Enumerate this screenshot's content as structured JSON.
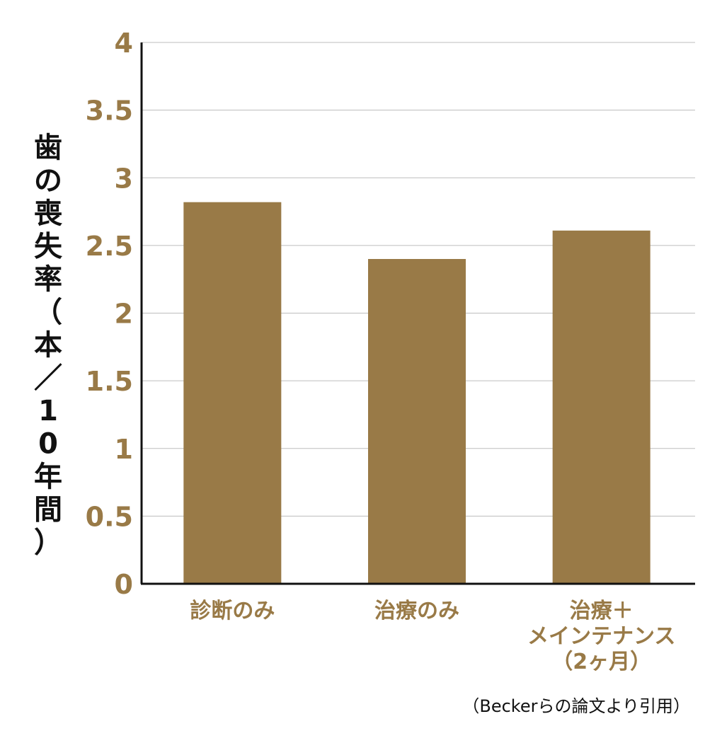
{
  "chart_data": {
    "type": "bar",
    "categories": [
      "診断のみ",
      "治療のみ",
      "治療＋メインテナンス（2ヶ月）"
    ],
    "category_lines": [
      [
        "診断のみ"
      ],
      [
        "治療のみ"
      ],
      [
        "治療＋",
        "メインテナンス",
        "（2ヶ月）"
      ]
    ],
    "values": [
      2.82,
      2.4,
      2.61
    ],
    "xlabel": "",
    "ylabel": "歯の喪失率（本／10年間）",
    "ylim": [
      0,
      4
    ],
    "yticks": [
      0,
      0.5,
      1,
      1.5,
      2,
      2.5,
      3,
      3.5,
      4
    ],
    "grid": true,
    "bar_color": "#997a47",
    "tick_color": "#997a47",
    "note": "（Beckerらの論文より引用）"
  }
}
